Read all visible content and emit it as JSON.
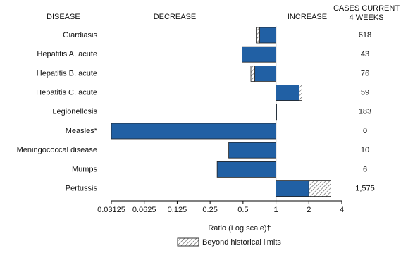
{
  "chart_data": {
    "type": "bar",
    "orientation": "horizontal",
    "log_scale": true,
    "headers": {
      "disease": "DISEASE",
      "decrease": "DECREASE",
      "increase": "INCREASE",
      "cases": [
        "CASES CURRENT",
        "4 WEEKS"
      ]
    },
    "categories": [
      "Giardiasis",
      "Hepatitis A, acute",
      "Hepatitis B, acute",
      "Hepatitis C, acute",
      "Legionellosis",
      "Measles*",
      "Meningococcal disease",
      "Mumps",
      "Pertussis"
    ],
    "values": [
      0.66,
      0.49,
      0.59,
      1.73,
      1.01,
      0.03125,
      0.37,
      0.29,
      3.18
    ],
    "beyond_limit_from": [
      0.71,
      null,
      0.64,
      1.63,
      null,
      null,
      null,
      null,
      2.0
    ],
    "cases": [
      618,
      43,
      76,
      59,
      183,
      0,
      10,
      6,
      {
        "value": 1575,
        "label": "1,575"
      }
    ],
    "color": "#2160a4",
    "xlim": [
      0.03125,
      4
    ],
    "xticks": [
      0.03125,
      0.0625,
      0.125,
      0.25,
      0.5,
      1,
      2,
      4
    ],
    "xlabel": "Ratio (Log scale)†",
    "legend": "Beyond historical limits"
  }
}
